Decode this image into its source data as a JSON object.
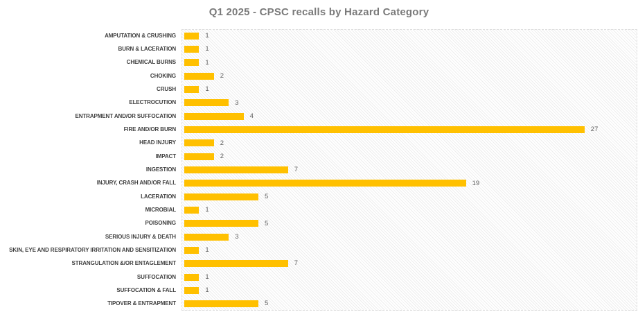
{
  "title": "Q1 2025 - CPSC recalls by Hazard Category",
  "chart_data": {
    "type": "bar",
    "orientation": "horizontal",
    "title": "Q1 2025 - CPSC recalls by Hazard Category",
    "categories": [
      "AMPUTATION & CRUSHING",
      "BURN & LACERATION",
      "CHEMICAL BURNS",
      "CHOKING",
      "CRUSH",
      "ELECTROCUTION",
      "ENTRAPMENT AND/OR SUFFOCATION",
      "FIRE AND/OR BURN",
      "HEAD INJURY",
      "IMPACT",
      "INGESTION",
      "INJURY, CRASH AND/OR FALL",
      "LACERATION",
      "MICROBIAL",
      "POISONING",
      "SERIOUS INJURY & DEATH",
      "SKIN, EYE AND RESPIRATORY IRRITATION AND SENSITIZATION",
      "STRANGULATION &/OR ENTAGLEMENT",
      "SUFFOCATION",
      "SUFFOCATION & FALL",
      "TIPOVER & ENTRAPMENT"
    ],
    "values": [
      1,
      1,
      1,
      2,
      1,
      3,
      4,
      27,
      2,
      2,
      7,
      19,
      5,
      1,
      5,
      3,
      1,
      7,
      1,
      1,
      5
    ],
    "xlabel": "",
    "ylabel": "",
    "xlim": [
      0,
      30
    ],
    "value_labels_shown": true,
    "grid": false,
    "legend": false
  },
  "colors": {
    "bar": "#FFC000",
    "title_text": "#7a7a7a",
    "category_text": "#3f3f3f",
    "value_text": "#5f5f5f",
    "plot_border": "#dedede",
    "hatch_line": "#ededed",
    "background": "#ffffff"
  }
}
